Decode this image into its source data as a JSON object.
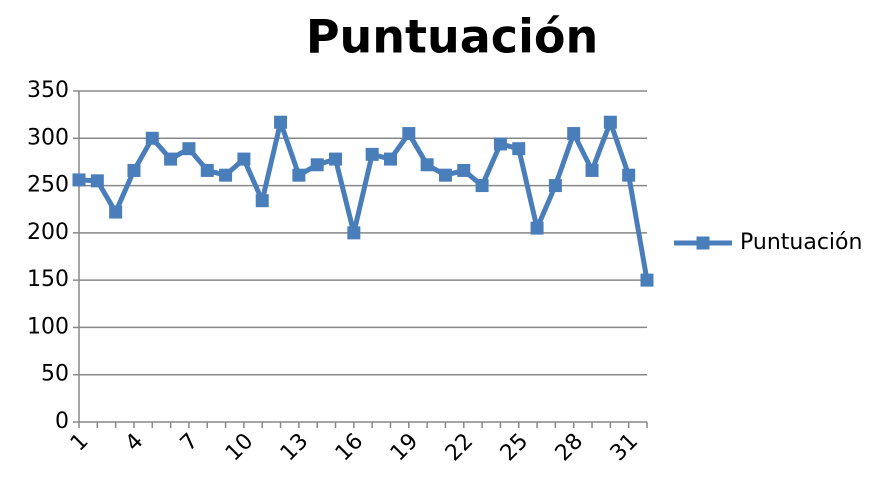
{
  "chart_data": {
    "type": "line",
    "title": "Puntuación",
    "categories": [
      1,
      null,
      null,
      4,
      null,
      null,
      7,
      null,
      null,
      10,
      null,
      null,
      13,
      null,
      null,
      16,
      null,
      null,
      19,
      null,
      null,
      22,
      null,
      null,
      25,
      null,
      null,
      28,
      null,
      null,
      31,
      null
    ],
    "series": [
      {
        "name": "Puntuación",
        "color": "#4a7ebb",
        "values": [
          256,
          255,
          222,
          266,
          300,
          278,
          289,
          266,
          261,
          278,
          234,
          317,
          261,
          272,
          278,
          200,
          283,
          278,
          305,
          272,
          261,
          266,
          250,
          294,
          289,
          205,
          250,
          305,
          266,
          317,
          261,
          150
        ]
      }
    ],
    "ylim": [
      0,
      350
    ],
    "yticks": [
      0,
      50,
      100,
      150,
      200,
      250,
      300,
      350
    ],
    "grid": true,
    "legend": "right"
  }
}
